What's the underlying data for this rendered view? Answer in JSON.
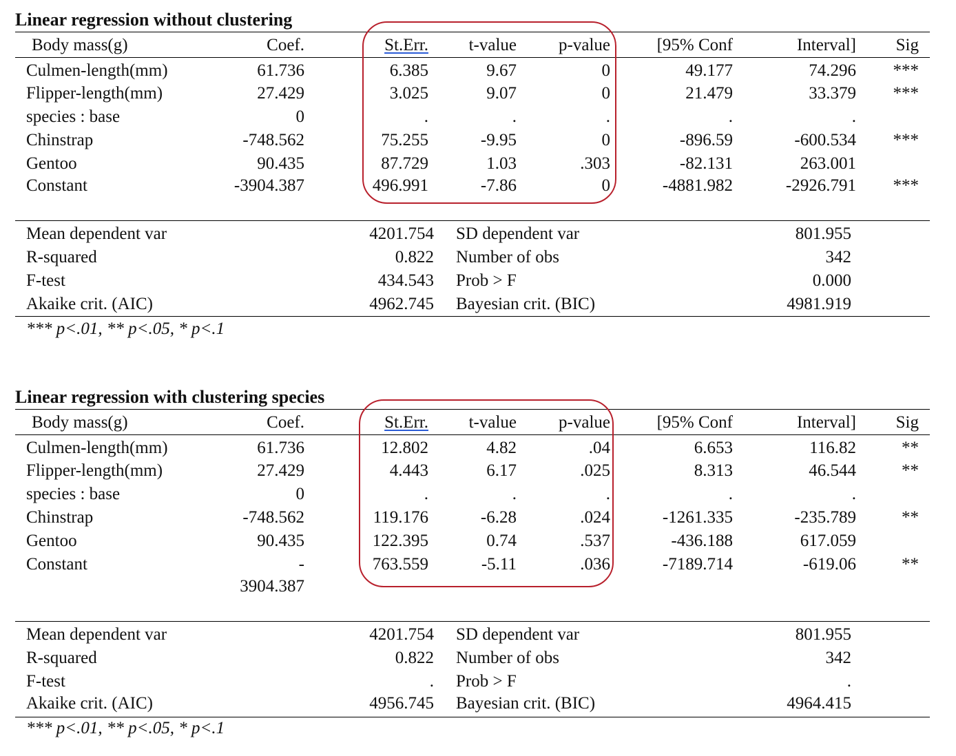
{
  "tables": [
    {
      "title": "Linear regression without clustering",
      "headers": [
        "Body mass(g)",
        "Coef.",
        "St.Err.",
        "t-value",
        "p-value",
        "[95% Conf",
        "Interval]",
        "Sig"
      ],
      "rows": [
        [
          "Culmen-length(mm)",
          "61.736",
          "6.385",
          "9.67",
          "0",
          "49.177",
          "74.296",
          "***"
        ],
        [
          "Flipper-length(mm)",
          "27.429",
          "3.025",
          "9.07",
          "0",
          "21.479",
          "33.379",
          "***"
        ],
        [
          "species : base",
          "0",
          ".",
          ".",
          ".",
          ".",
          ".",
          ""
        ],
        [
          "Chinstrap",
          "-748.562",
          "75.255",
          "-9.95",
          "0",
          "-896.59",
          "-600.534",
          "***"
        ],
        [
          "Gentoo",
          "90.435",
          "87.729",
          "1.03",
          ".303",
          "-82.131",
          "263.001",
          ""
        ],
        [
          "Constant",
          "-3904.387",
          "496.991",
          "-7.86",
          "0",
          "-4881.982",
          "-2926.791",
          "***"
        ]
      ],
      "stats": [
        [
          "Mean dependent var",
          "4201.754",
          "SD dependent var",
          "801.955"
        ],
        [
          "R-squared",
          "0.822",
          "Number of obs",
          "342"
        ],
        [
          "F-test",
          "434.543",
          "Prob > F",
          "0.000"
        ],
        [
          "Akaike crit. (AIC)",
          "4962.745",
          "Bayesian crit. (BIC)",
          "4981.919"
        ]
      ],
      "note": "*** p<.01, ** p<.05, * p<.1"
    },
    {
      "title": "Linear regression with clustering species",
      "headers": [
        "Body mass(g)",
        "Coef.",
        "St.Err.",
        "t-value",
        "p-value",
        "[95% Conf",
        "Interval]",
        "Sig"
      ],
      "rows": [
        [
          "Culmen-length(mm)",
          "61.736",
          "12.802",
          "4.82",
          ".04",
          "6.653",
          "116.82",
          "**"
        ],
        [
          "Flipper-length(mm)",
          "27.429",
          "4.443",
          "6.17",
          ".025",
          "8.313",
          "46.544",
          "**"
        ],
        [
          "species : base",
          "0",
          ".",
          ".",
          ".",
          ".",
          ".",
          ""
        ],
        [
          "Chinstrap",
          "-748.562",
          "119.176",
          "-6.28",
          ".024",
          "-1261.335",
          "-235.789",
          "**"
        ],
        [
          "Gentoo",
          "90.435",
          "122.395",
          "0.74",
          ".537",
          "-436.188",
          "617.059",
          ""
        ],
        [
          "Constant",
          "-",
          "763.559",
          "-5.11",
          ".036",
          "-7189.714",
          "-619.06",
          "**"
        ]
      ],
      "constant_wrap": "3904.387",
      "stats": [
        [
          "Mean dependent var",
          "4201.754",
          "SD dependent var",
          "801.955"
        ],
        [
          "R-squared",
          "0.822",
          "Number of obs",
          "342"
        ],
        [
          "F-test",
          ".",
          "Prob > F",
          "."
        ],
        [
          "Akaike crit. (AIC)",
          "4956.745",
          "Bayesian crit. (BIC)",
          "4964.415"
        ]
      ],
      "note": "*** p<.01, ** p<.05, * p<.1"
    }
  ],
  "highlight_color": "#b8202c",
  "underline_color": "#2a5bd7"
}
